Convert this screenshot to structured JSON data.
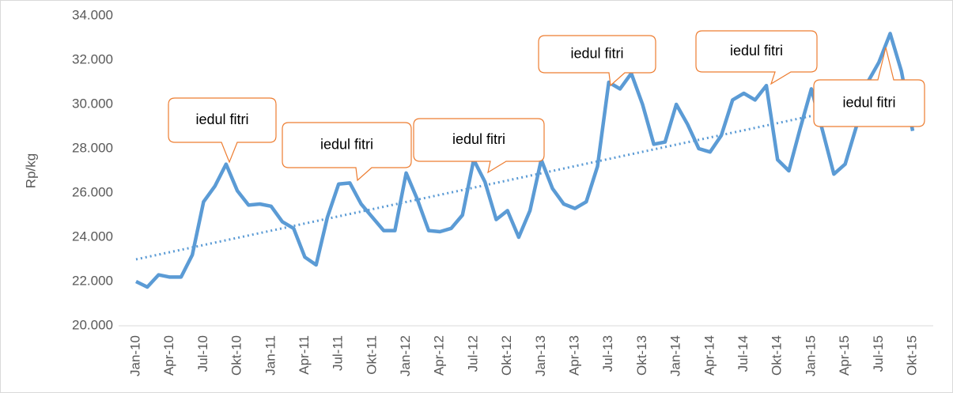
{
  "chart_data": {
    "type": "line",
    "y_label": "Rp/kg",
    "categories": [
      "Jan-10",
      null,
      null,
      "Apr-10",
      null,
      null,
      "Jul-10",
      null,
      null,
      "Okt-10",
      null,
      null,
      "Jan-11",
      null,
      null,
      "Apr-11",
      null,
      null,
      "Jul-11",
      null,
      null,
      "Okt-11",
      null,
      null,
      "Jan-12",
      null,
      null,
      "Apr-12",
      null,
      null,
      "Jul-12",
      null,
      null,
      "Okt-12",
      null,
      null,
      "Jan-13",
      null,
      null,
      "Apr-13",
      null,
      null,
      "Jul-13",
      null,
      null,
      "Okt-13",
      null,
      null,
      "Jan-14",
      null,
      null,
      "Apr-14",
      null,
      null,
      "Jul-14",
      null,
      null,
      "Okt-14",
      null,
      null,
      "Jan-15",
      null,
      null,
      "Apr-15",
      null,
      null,
      "Jul-15",
      null,
      null,
      "Okt-15"
    ],
    "series": [
      {
        "name": "Rp/kg",
        "color": "#5b9bd5",
        "values": [
          22000,
          21750,
          22300,
          22200,
          22200,
          23200,
          25600,
          26300,
          27300,
          26100,
          25450,
          25500,
          25400,
          24700,
          24400,
          23100,
          22750,
          24900,
          26400,
          26450,
          25500,
          24900,
          24300,
          24300,
          26900,
          25700,
          24300,
          24250,
          24400,
          25000,
          27500,
          26500,
          24800,
          25200,
          24000,
          25200,
          27500,
          26200,
          25500,
          25300,
          25600,
          27200,
          31000,
          30700,
          31400,
          30000,
          28200,
          28300,
          30000,
          29100,
          28000,
          27850,
          28600,
          30200,
          30500,
          30200,
          30850,
          27500,
          27000,
          28900,
          30700,
          28800,
          26850,
          27300,
          29000,
          31000,
          31900,
          33200,
          31500,
          28800
        ]
      }
    ],
    "trendline": {
      "color": "#5b9bd5",
      "values": [
        23000,
        30450
      ]
    },
    "ylim": [
      20000,
      34000
    ],
    "yticks": [
      {
        "value": 20000,
        "label": "20.000"
      },
      {
        "value": 22000,
        "label": "22.000"
      },
      {
        "value": 24000,
        "label": "24.000"
      },
      {
        "value": 26000,
        "label": "26.000"
      },
      {
        "value": 28000,
        "label": "28.000"
      },
      {
        "value": 30000,
        "label": "30.000"
      },
      {
        "value": 32000,
        "label": "32.000"
      },
      {
        "value": 34000,
        "label": "34.000"
      }
    ],
    "annotations": [
      "iedul fitri",
      "iedul fitri",
      "iedul fitri",
      "iedul fitri",
      "iedul fitri",
      "iedul fitri"
    ],
    "annotation_color": "#ed7d31"
  }
}
